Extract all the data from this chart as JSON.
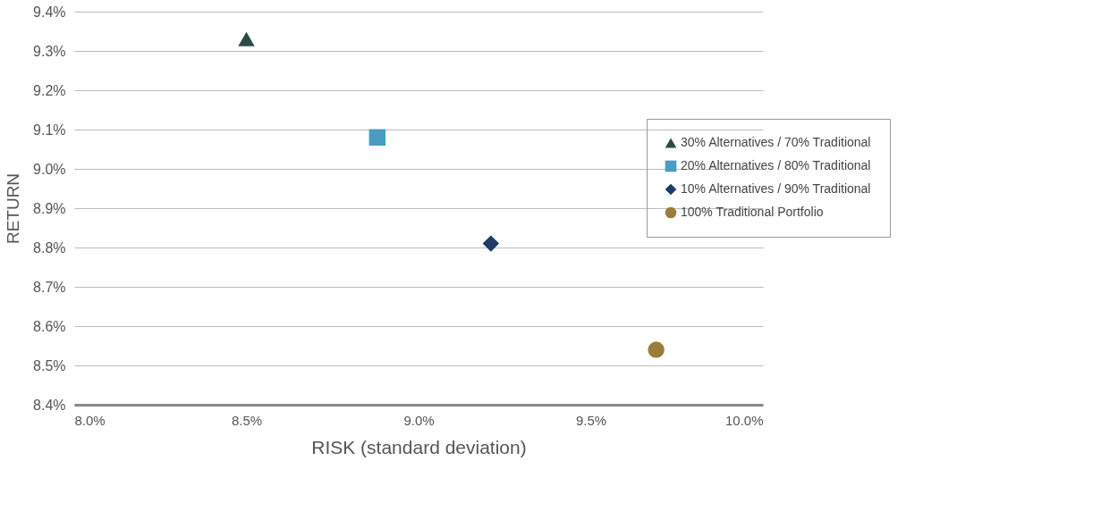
{
  "chart_data": {
    "type": "scatter",
    "xlabel": "RISK (standard deviation)",
    "ylabel": "RETURN",
    "xlim": [
      8.0,
      10.0
    ],
    "ylim": [
      8.4,
      9.4
    ],
    "xticks": [
      {
        "value": 8.0,
        "label": "8.0%"
      },
      {
        "value": 8.5,
        "label": "8.5%"
      },
      {
        "value": 9.0,
        "label": "9.0%"
      },
      {
        "value": 9.5,
        "label": "9.5%"
      },
      {
        "value": 10.0,
        "label": "10.0%"
      }
    ],
    "yticks": [
      {
        "value": 8.4,
        "label": "8.4%"
      },
      {
        "value": 8.5,
        "label": "8.5%"
      },
      {
        "value": 8.6,
        "label": "8.6%"
      },
      {
        "value": 8.7,
        "label": "8.7%"
      },
      {
        "value": 8.8,
        "label": "8.8%"
      },
      {
        "value": 8.9,
        "label": "8.9%"
      },
      {
        "value": 9.0,
        "label": "9.0%"
      },
      {
        "value": 9.1,
        "label": "9.1%"
      },
      {
        "value": 9.2,
        "label": "9.2%"
      },
      {
        "value": 9.3,
        "label": "9.3%"
      },
      {
        "value": 9.4,
        "label": "9.4%"
      }
    ],
    "grid": "y",
    "legend": "right",
    "series": [
      {
        "name": "30% Alternatives / 70% Traditional",
        "color": "#2d4a48",
        "marker": "triangle",
        "x": [
          8.5
        ],
        "values": [
          9.33
        ]
      },
      {
        "name": "20% Alternatives / 80% Traditional",
        "color": "#4a9cc0",
        "marker": "square",
        "x": [
          8.88
        ],
        "values": [
          9.08
        ]
      },
      {
        "name": "10% Alternatives / 90% Traditional",
        "color": "#1e3b6a",
        "marker": "diamond",
        "x": [
          9.21
        ],
        "values": [
          8.81
        ]
      },
      {
        "name": "100% Traditional Portfolio",
        "color": "#9a7d3b",
        "marker": "circle",
        "x": [
          9.69
        ],
        "values": [
          8.54
        ]
      }
    ]
  }
}
